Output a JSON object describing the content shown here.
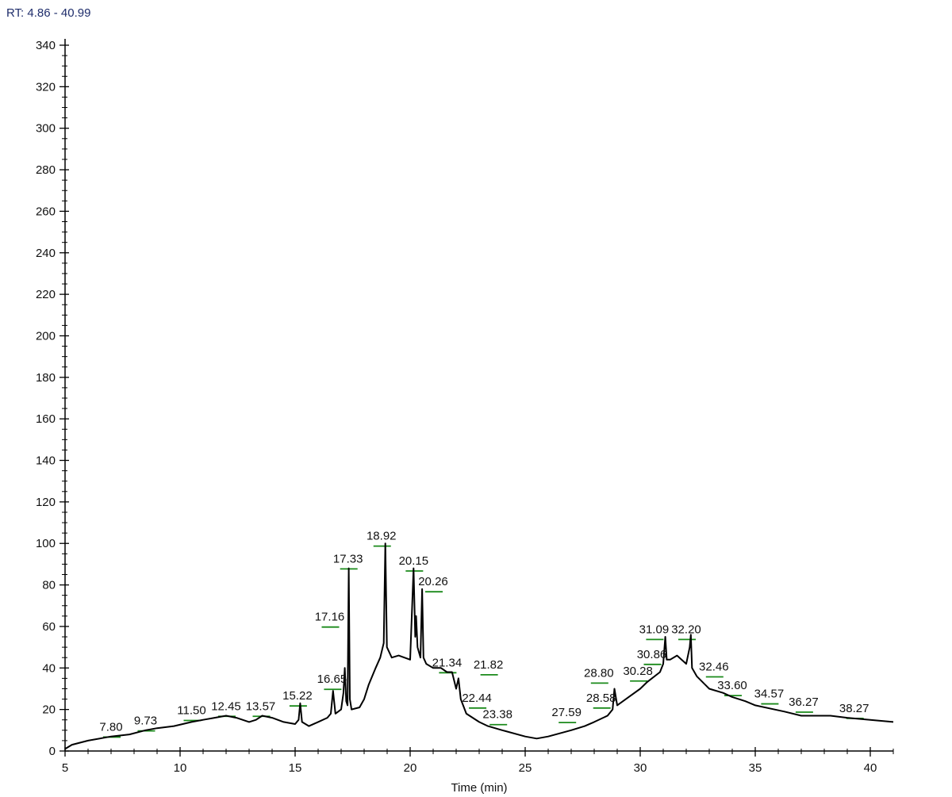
{
  "header": {
    "rt_range": "RT: 4.86 - 40.99"
  },
  "chart_data": {
    "type": "line",
    "title": "",
    "xlabel": "Time (min)",
    "ylabel": "",
    "xlim": [
      5,
      41
    ],
    "ylim": [
      0,
      340
    ],
    "x_ticks": [
      5,
      10,
      15,
      20,
      25,
      30,
      35,
      40
    ],
    "y_ticks": [
      0,
      20,
      40,
      60,
      80,
      100,
      120,
      140,
      160,
      180,
      200,
      220,
      240,
      260,
      280,
      300,
      320,
      340
    ],
    "grid": false,
    "line_color": "#000000",
    "marker_color": "#1a8a1a",
    "series": [
      {
        "x": [
          5.0,
          5.3,
          6.0,
          7.0,
          7.8,
          8.5,
          9.0,
          9.73,
          10.5,
          11.0,
          11.5,
          12.0,
          12.45,
          13.0,
          13.3,
          13.57,
          14.0,
          14.5,
          15.0,
          15.15,
          15.22,
          15.3,
          15.6,
          16.0,
          16.4,
          16.55,
          16.65,
          16.75,
          17.0,
          17.1,
          17.16,
          17.22,
          17.28,
          17.33,
          17.38,
          17.45,
          17.8,
          18.0,
          18.2,
          18.5,
          18.7,
          18.85,
          18.92,
          18.99,
          19.2,
          19.5,
          20.0,
          20.15,
          20.22,
          20.26,
          20.32,
          20.45,
          20.52,
          20.58,
          20.7,
          21.0,
          21.34,
          21.6,
          21.82,
          22.0,
          22.1,
          22.2,
          22.44,
          23.0,
          23.38,
          24.0,
          25.0,
          25.5,
          26.0,
          27.0,
          27.59,
          28.0,
          28.58,
          28.8,
          28.88,
          29.0,
          29.5,
          30.0,
          30.28,
          30.86,
          31.0,
          31.09,
          31.15,
          31.3,
          31.6,
          32.0,
          32.15,
          32.2,
          32.25,
          32.46,
          33.0,
          33.6,
          34.0,
          34.57,
          35.0,
          36.27,
          37.0,
          38.27,
          39.0,
          40.0,
          41.0
        ],
        "y": [
          1,
          3,
          5,
          7,
          8,
          10,
          11,
          12,
          14,
          15,
          16,
          17,
          16,
          14,
          15,
          17,
          16,
          14,
          13,
          15,
          23,
          14,
          12,
          14,
          16,
          18,
          29,
          18,
          20,
          28,
          40,
          24,
          22,
          88,
          25,
          20,
          21,
          25,
          32,
          40,
          45,
          52,
          100,
          50,
          45,
          46,
          44,
          88,
          55,
          65,
          50,
          45,
          78,
          45,
          42,
          40,
          40,
          38,
          38,
          30,
          35,
          25,
          18,
          14,
          12,
          10,
          7,
          6,
          7,
          10,
          12,
          14,
          17,
          20,
          30,
          22,
          26,
          30,
          33,
          38,
          42,
          55,
          44,
          44,
          46,
          42,
          50,
          56,
          40,
          36,
          30,
          28,
          26,
          24,
          22,
          19,
          17,
          17,
          16,
          15,
          14
        ]
      }
    ],
    "peak_labels": [
      {
        "text": "7.80",
        "x": 7.0,
        "y": 9
      },
      {
        "text": "9.73",
        "x": 8.5,
        "y": 12
      },
      {
        "text": "11.50",
        "x": 10.5,
        "y": 17
      },
      {
        "text": "12.45",
        "x": 12.0,
        "y": 19
      },
      {
        "text": "13.57",
        "x": 13.5,
        "y": 19
      },
      {
        "text": "15.22",
        "x": 15.1,
        "y": 24
      },
      {
        "text": "16.65",
        "x": 16.6,
        "y": 32
      },
      {
        "text": "17.16",
        "x": 16.5,
        "y": 62
      },
      {
        "text": "17.33",
        "x": 17.3,
        "y": 90
      },
      {
        "text": "18.92",
        "x": 18.75,
        "y": 101
      },
      {
        "text": "20.15",
        "x": 20.15,
        "y": 89
      },
      {
        "text": "20.26",
        "x": 21.0,
        "y": 79
      },
      {
        "text": "21.34",
        "x": 21.6,
        "y": 40
      },
      {
        "text": "21.82",
        "x": 23.4,
        "y": 39
      },
      {
        "text": "22.44",
        "x": 22.9,
        "y": 23
      },
      {
        "text": "23.38",
        "x": 23.8,
        "y": 15
      },
      {
        "text": "27.59",
        "x": 26.8,
        "y": 16
      },
      {
        "text": "28.58",
        "x": 28.3,
        "y": 23
      },
      {
        "text": "28.80",
        "x": 28.2,
        "y": 35
      },
      {
        "text": "30.28",
        "x": 29.9,
        "y": 36
      },
      {
        "text": "30.86",
        "x": 30.5,
        "y": 44
      },
      {
        "text": "31.09",
        "x": 30.6,
        "y": 56
      },
      {
        "text": "32.20",
        "x": 32.0,
        "y": 56
      },
      {
        "text": "32.46",
        "x": 33.2,
        "y": 38
      },
      {
        "text": "33.60",
        "x": 34.0,
        "y": 29
      },
      {
        "text": "34.57",
        "x": 35.6,
        "y": 25
      },
      {
        "text": "36.27",
        "x": 37.1,
        "y": 21
      },
      {
        "text": "38.27",
        "x": 39.3,
        "y": 18
      }
    ]
  }
}
